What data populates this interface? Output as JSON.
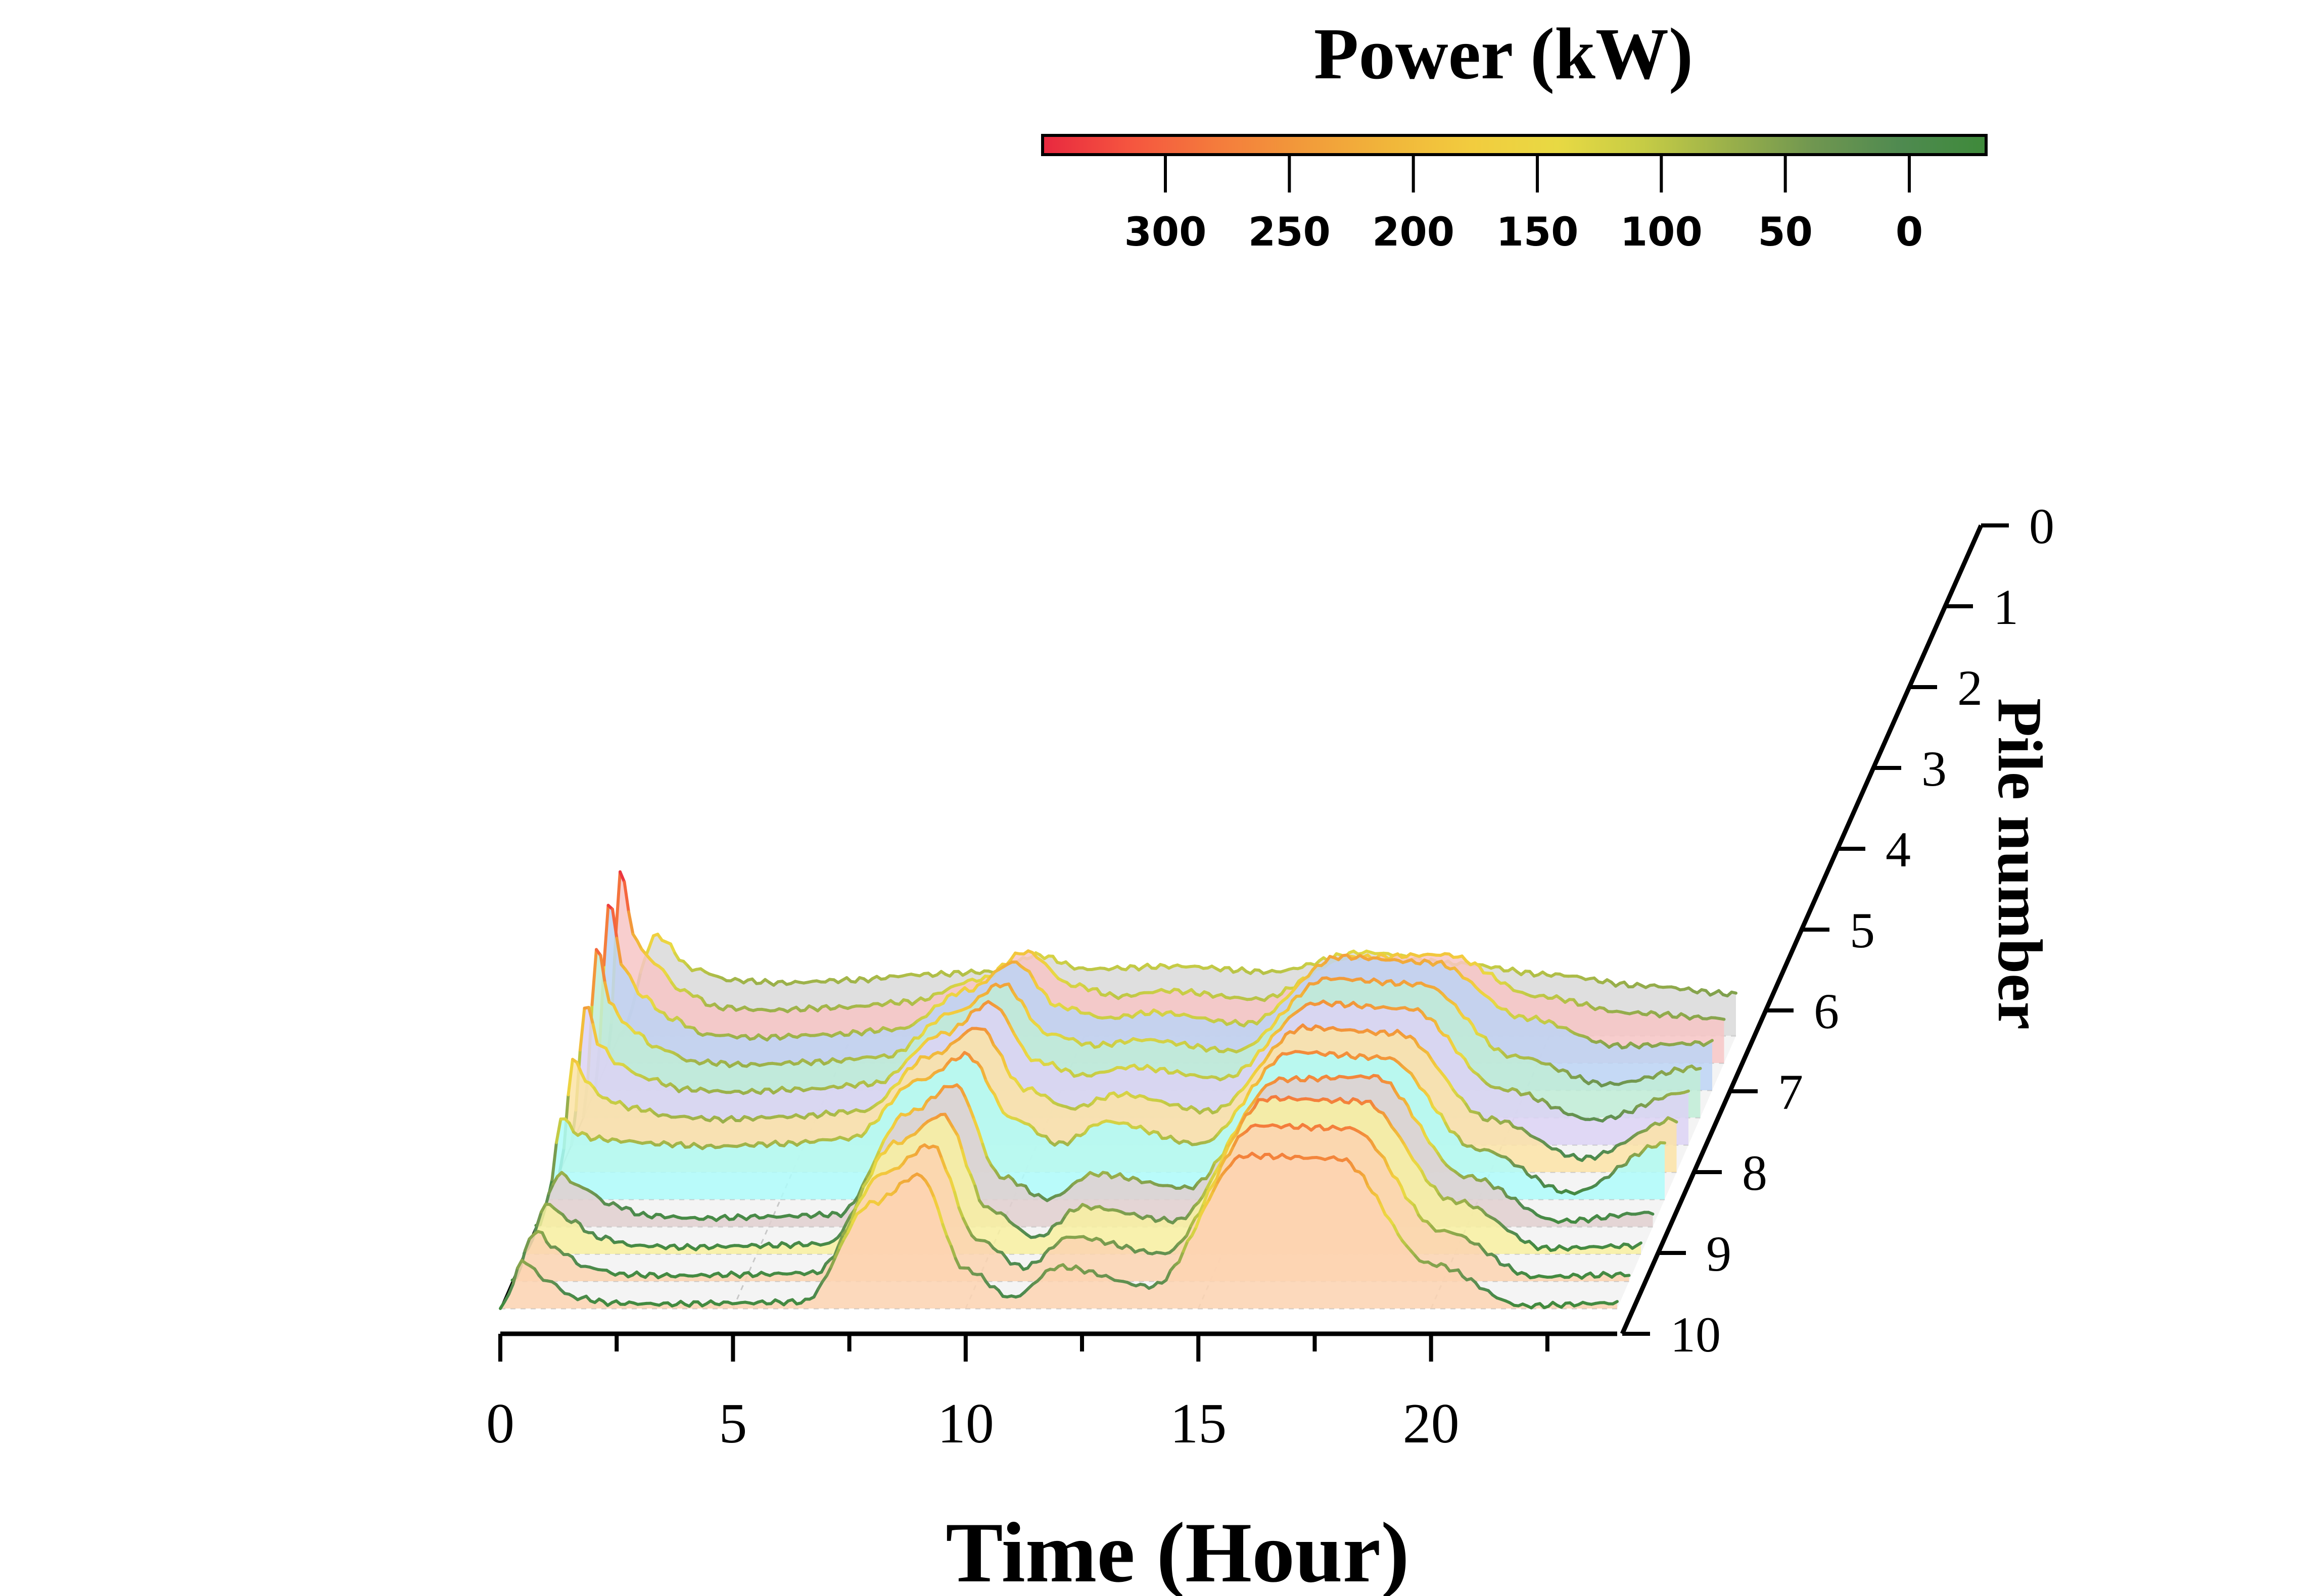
{
  "chart_data": {
    "type": "line",
    "subtype": "3d-waterfall",
    "xlabel": "Time (Hour)",
    "ylabel": "Pile number",
    "colorbar_title": "Power (kW)",
    "x_ticks": [
      0,
      5,
      10,
      15,
      20
    ],
    "y_ticks": [
      0,
      1,
      2,
      3,
      4,
      5,
      6,
      7,
      8,
      9,
      10
    ],
    "colorbar_ticks": [
      300,
      250,
      200,
      150,
      100,
      50,
      0
    ],
    "xlim": [
      0,
      24
    ],
    "colorbar_range": [
      0,
      345
    ],
    "grid": true,
    "colors": {
      "colorbar_stops": [
        "#e8283f",
        "#f5543f",
        "#f47a3c",
        "#f2993a",
        "#f1b53a",
        "#f2cc3e",
        "#e8d943",
        "#c6cc45",
        "#9ab04a",
        "#6f9650",
        "#4f8a50",
        "#3e8a3a"
      ],
      "fills": [
        "#d9d9d9",
        "#f7c6c6",
        "#bcd3f4",
        "#bfecd6",
        "#dcd2f4",
        "#fbe3a6",
        "#aefcfa",
        "#e0cfcf",
        "#f8f0a0",
        "#fcd4b0",
        "#fdd4b2"
      ]
    },
    "series": [
      {
        "pile": 0,
        "x": [
          0,
          0.8,
          1.6,
          2.4,
          3.5,
          5,
          6.5,
          8,
          9,
          10,
          12,
          14,
          16,
          18,
          20,
          22,
          24
        ],
        "y": [
          0,
          180,
          120,
          100,
          95,
          100,
          110,
          115,
          145,
          120,
          125,
          115,
          150,
          130,
          110,
          90,
          75
        ]
      },
      {
        "pile": 1,
        "x": [
          0,
          0.3,
          0.6,
          1,
          1.6,
          2.4,
          3.5,
          5,
          6.5,
          8,
          9,
          10,
          11,
          12,
          14,
          16,
          18,
          20,
          22,
          24
        ],
        "y": [
          0,
          345,
          220,
          180,
          130,
          100,
          95,
          100,
          110,
          150,
          200,
          140,
          120,
          130,
          115,
          190,
          195,
          120,
          90,
          80
        ]
      },
      {
        "pile": 2,
        "x": [
          0,
          0.3,
          0.6,
          1,
          1.6,
          2.4,
          3.5,
          5,
          6.5,
          8,
          9,
          10,
          11,
          12,
          14,
          16,
          18,
          20,
          22,
          24
        ],
        "y": [
          0,
          340,
          220,
          170,
          130,
          100,
          95,
          100,
          110,
          180,
          230,
          150,
          130,
          140,
          120,
          240,
          230,
          130,
          80,
          85
        ]
      },
      {
        "pile": 3,
        "x": [
          0,
          0.3,
          0.6,
          1,
          1.6,
          2.4,
          3.5,
          5,
          6.5,
          8,
          9,
          10,
          11,
          12,
          14,
          16,
          18,
          20,
          22,
          24
        ],
        "y": [
          0,
          305,
          200,
          160,
          125,
          100,
          95,
          100,
          110,
          190,
          240,
          150,
          130,
          140,
          120,
          250,
          240,
          110,
          60,
          90
        ]
      },
      {
        "pile": 4,
        "x": [
          0,
          0.3,
          0.6,
          1,
          1.6,
          2.4,
          3.5,
          5,
          6.5,
          8,
          9,
          10,
          11,
          12,
          14,
          16,
          18,
          20,
          22,
          24
        ],
        "y": [
          0,
          255,
          180,
          145,
          120,
          100,
          95,
          100,
          110,
          200,
          255,
          150,
          125,
          140,
          120,
          255,
          245,
          100,
          45,
          95
        ]
      },
      {
        "pile": 5,
        "x": [
          0,
          0.3,
          0.6,
          1,
          1.6,
          2.4,
          3.5,
          5,
          6.5,
          8,
          9,
          10,
          11,
          12,
          14,
          16,
          18,
          20,
          22,
          24
        ],
        "y": [
          0,
          205,
          160,
          130,
          115,
          100,
          95,
          100,
          110,
          210,
          260,
          150,
          115,
          140,
          110,
          260,
          250,
          95,
          25,
          95
        ]
      },
      {
        "pile": 6,
        "x": [
          0,
          0.3,
          0.6,
          1,
          1.6,
          2.4,
          3.5,
          5,
          6.5,
          8,
          9,
          10,
          11,
          12,
          14,
          16,
          18,
          20,
          22,
          24
        ],
        "y": [
          0,
          150,
          120,
          110,
          105,
          100,
          95,
          100,
          110,
          215,
          260,
          145,
          100,
          140,
          100,
          265,
          255,
          90,
          12,
          100
        ]
      },
      {
        "pile": 7,
        "x": [
          0,
          0.5,
          1,
          1.6,
          2.4,
          3.5,
          5,
          6.5,
          8,
          9,
          10,
          11,
          12,
          14,
          16,
          18,
          20,
          22,
          24
        ],
        "y": [
          0,
          95,
          70,
          40,
          20,
          15,
          18,
          22,
          205,
          255,
          90,
          50,
          95,
          70,
          265,
          270,
          90,
          10,
          25
        ]
      },
      {
        "pile": 8,
        "x": [
          0,
          0.5,
          1,
          1.6,
          2.4,
          3.5,
          5,
          6.5,
          8,
          9,
          10,
          11,
          12,
          14,
          16,
          18,
          20,
          22,
          24
        ],
        "y": [
          0,
          90,
          60,
          30,
          15,
          12,
          15,
          18,
          200,
          250,
          80,
          30,
          85,
          60,
          280,
          275,
          95,
          10,
          15
        ]
      },
      {
        "pile": 9,
        "x": [
          0,
          0.5,
          1,
          1.6,
          2.4,
          3.5,
          5,
          6.5,
          8,
          9,
          10,
          11,
          12,
          14,
          16,
          18,
          20,
          22,
          24
        ],
        "y": [
          0,
          90,
          55,
          25,
          12,
          10,
          12,
          15,
          195,
          245,
          75,
          25,
          80,
          50,
          280,
          275,
          90,
          8,
          12
        ]
      },
      {
        "pile": 10,
        "x": [
          0,
          0.5,
          1,
          1.6,
          2.4,
          3.5,
          5,
          6.5,
          8,
          9,
          10,
          11,
          12,
          14,
          16,
          18,
          20,
          22,
          24
        ],
        "y": [
          0,
          85,
          50,
          20,
          10,
          8,
          10,
          12,
          190,
          240,
          70,
          20,
          75,
          40,
          275,
          270,
          80,
          5,
          10
        ]
      }
    ]
  }
}
